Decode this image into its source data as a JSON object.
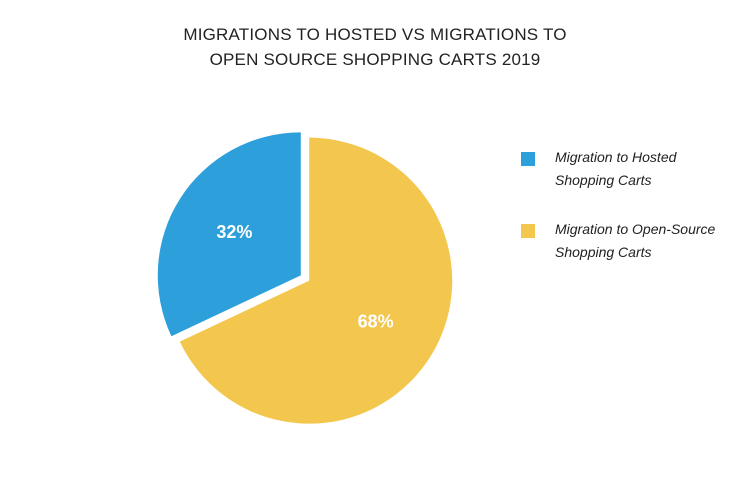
{
  "chart_data": {
    "type": "pie",
    "title_lines": [
      "MIGRATIONS TO HOSTED VS MIGRATIONS TO",
      "OPEN SOURCE SHOPPING CARTS 2019"
    ],
    "slices": [
      {
        "name_lines": [
          "Migration to Hosted",
          "Shopping Carts"
        ],
        "value": 32,
        "label": "32%",
        "color": "#2d9fdb"
      },
      {
        "name_lines": [
          "Migration to Open-Source",
          "Shopping Carts"
        ],
        "value": 68,
        "label": "68%",
        "color": "#f3c74d"
      }
    ],
    "legend_position": "right"
  }
}
